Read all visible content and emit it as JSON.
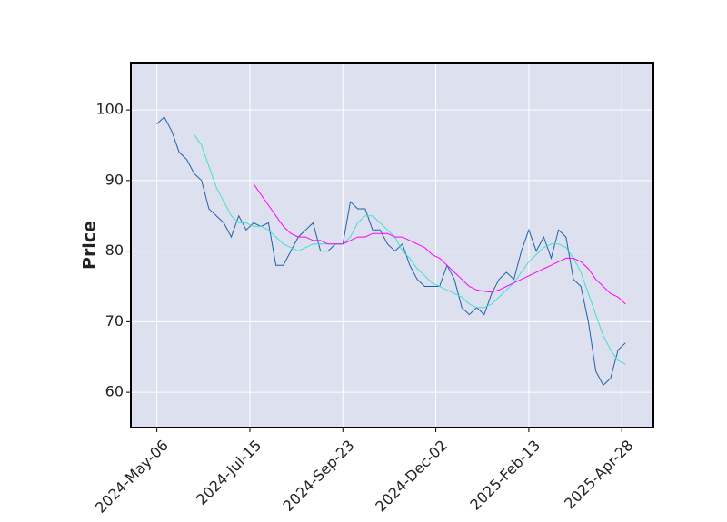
{
  "chart_data": {
    "type": "line",
    "ylabel": "Price",
    "x": [
      0,
      4,
      8,
      12,
      16,
      20,
      24,
      28,
      32,
      36,
      40,
      44,
      48,
      52,
      56,
      60,
      64,
      68,
      72,
      76,
      80,
      84,
      88,
      92,
      96,
      100,
      104,
      108,
      112,
      116,
      120,
      124,
      128,
      132,
      136,
      140,
      144,
      148,
      152,
      156,
      160,
      164,
      168,
      172,
      176,
      180,
      184,
      188,
      192,
      196,
      200,
      204,
      208,
      212,
      216,
      220,
      224,
      228,
      232,
      236,
      240,
      244,
      248,
      252
    ],
    "series": [
      {
        "color": "#1f5fa8",
        "width": 1,
        "values": [
          98,
          99,
          97,
          94,
          93,
          91,
          90,
          86,
          85,
          84,
          82,
          85,
          83,
          84,
          83.5,
          84,
          78,
          78,
          80,
          82,
          83,
          84,
          80,
          80,
          81,
          81,
          87,
          86,
          86,
          83,
          83,
          81,
          80,
          81,
          78,
          76,
          75,
          75,
          75,
          78,
          76,
          72,
          71,
          72,
          71,
          74,
          76,
          77,
          76,
          80,
          83,
          80,
          82,
          79,
          83,
          82,
          76,
          75,
          70,
          63,
          61,
          62,
          66,
          67
        ]
      },
      {
        "color": "#40e0d0",
        "width": 1,
        "values": [
          null,
          null,
          null,
          null,
          null,
          96.5,
          95,
          92,
          89,
          87,
          85,
          84,
          84,
          83.5,
          83.5,
          83,
          82,
          81,
          80.5,
          80,
          80.5,
          81,
          81,
          81,
          81,
          81,
          82,
          84,
          85,
          85,
          84,
          83,
          82,
          80,
          79,
          77.5,
          76.5,
          75.5,
          75,
          74.5,
          74,
          73.5,
          72.5,
          72,
          72,
          72.5,
          73.5,
          74.5,
          75.5,
          77,
          78.5,
          79.5,
          80.5,
          81,
          81,
          80.5,
          79,
          77,
          74,
          71,
          68,
          66,
          64.5,
          64
        ]
      },
      {
        "color": "#ff00ff",
        "width": 1,
        "values": [
          null,
          null,
          null,
          null,
          null,
          null,
          null,
          null,
          null,
          null,
          null,
          null,
          null,
          89.5,
          88,
          86.5,
          85,
          83.5,
          82.5,
          82,
          82,
          81.5,
          81.5,
          81,
          81,
          81,
          81.5,
          82,
          82,
          82.5,
          82.5,
          82.5,
          82,
          82,
          81.5,
          81,
          80.5,
          79.5,
          79,
          78,
          77,
          76,
          75,
          74.5,
          74.3,
          74.2,
          74.5,
          75,
          75.5,
          76,
          76.5,
          77,
          77.5,
          78,
          78.5,
          79,
          79,
          78.5,
          77.5,
          76,
          75,
          74,
          73.5,
          72.5
        ]
      }
    ],
    "xlim": [
      -14,
      267
    ],
    "ylim": [
      55,
      106.7
    ],
    "xticks": [
      {
        "value": 0,
        "label": "2024-May-06"
      },
      {
        "value": 50,
        "label": "2024-Jul-15"
      },
      {
        "value": 100,
        "label": "2024-Sep-23"
      },
      {
        "value": 150,
        "label": "2024-Dec-02"
      },
      {
        "value": 200,
        "label": "2025-Feb-13"
      },
      {
        "value": 250,
        "label": "2025-Apr-28"
      }
    ],
    "yticks": [
      60,
      70,
      80,
      90,
      100
    ],
    "grid": true,
    "background": "#dde1ef"
  }
}
